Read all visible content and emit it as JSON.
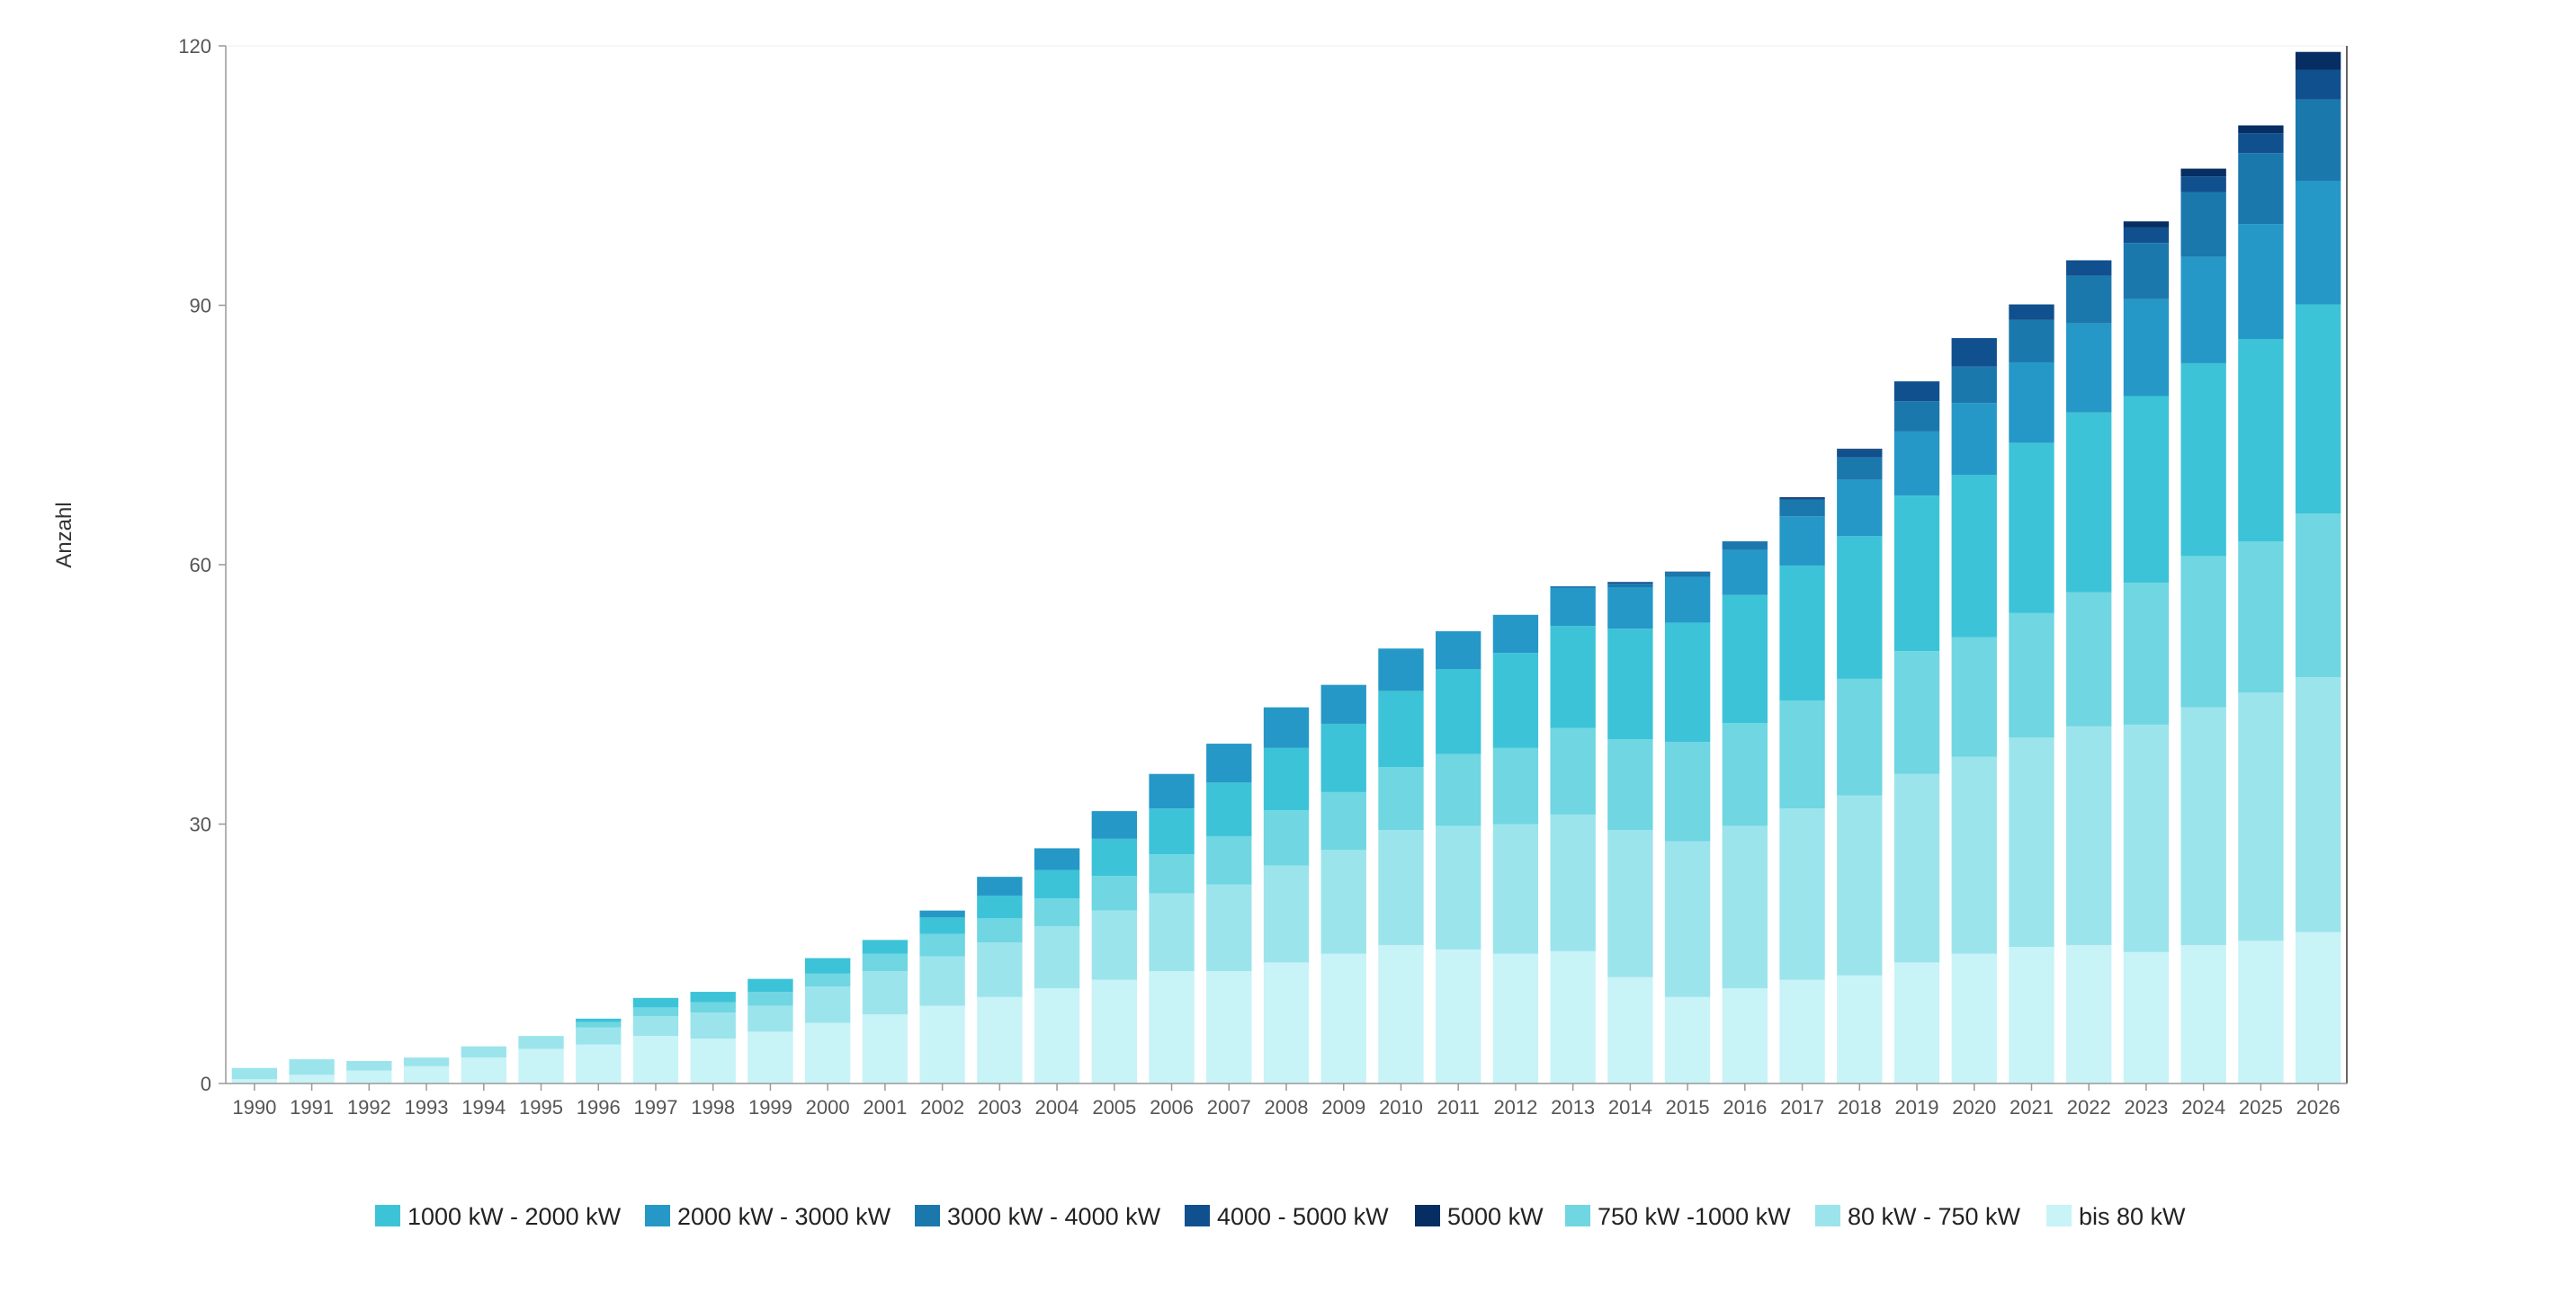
{
  "chart_data": {
    "type": "bar",
    "stacked": true,
    "ylabel": "Anzahl",
    "xlabel": "",
    "ylim": [
      0,
      120
    ],
    "yticks": [
      "0",
      "30",
      "60",
      "90",
      "120"
    ],
    "legend_position": "bottom",
    "categories": [
      "1990",
      "1991",
      "1992",
      "1993",
      "1994",
      "1995",
      "1996",
      "1997",
      "1998",
      "1999",
      "2000",
      "2001",
      "2002",
      "2003",
      "2004",
      "2005",
      "2006",
      "2007",
      "2008",
      "2009",
      "2010",
      "2011",
      "2012",
      "2013",
      "2014",
      "2015",
      "2016",
      "2017",
      "2018",
      "2019",
      "2020",
      "2021",
      "2022",
      "2023",
      "2024",
      "2025",
      "2026"
    ],
    "series": [
      {
        "name": "bis 80 kW",
        "color": "#c8f3f7",
        "values": [
          0.5,
          1,
          1.5,
          2,
          3,
          4,
          4.5,
          5.5,
          5.2,
          6,
          7,
          8,
          9,
          10,
          11,
          12,
          13,
          13,
          14,
          15,
          16,
          15.5,
          15,
          15.3,
          12.3,
          10,
          11,
          12,
          12.5,
          14,
          15,
          15.8,
          16,
          15.2,
          16,
          16.5,
          17.5
        ]
      },
      {
        "name": "80 kW - 750 kW",
        "color": "#9ce4ec",
        "values": [
          1.3,
          1.8,
          1.1,
          1,
          1.3,
          1.5,
          2,
          2.3,
          3,
          3,
          4.2,
          5,
          5.7,
          6.3,
          7.2,
          8,
          9,
          10,
          11.2,
          12,
          13.3,
          14.3,
          15,
          15.8,
          17,
          18,
          18.8,
          19.8,
          20.8,
          21.8,
          22.8,
          24.2,
          25.3,
          26.3,
          27.5,
          28.7,
          29.5
        ]
      },
      {
        "name": "750 kW -1000 kW",
        "color": "#6fd6e2",
        "values": [
          0,
          0,
          0,
          0,
          0,
          0,
          0.6,
          1,
          1.2,
          1.6,
          1.5,
          2,
          2.6,
          2.8,
          3.2,
          4,
          4.5,
          5.6,
          6.4,
          6.7,
          7.3,
          8.3,
          8.8,
          10,
          10.5,
          11.5,
          11.9,
          12.5,
          13.5,
          14.2,
          13.8,
          14.4,
          15.5,
          16.4,
          17.5,
          17.5,
          18.9
        ]
      },
      {
        "name": "1000 kW - 2000 kW",
        "color": "#3cc3d8",
        "values": [
          0,
          0,
          0,
          0,
          0,
          0,
          0.4,
          1.1,
          1.2,
          1.5,
          1.8,
          1.6,
          1.9,
          2.6,
          3.3,
          4.3,
          5.3,
          6.2,
          7.2,
          7.9,
          8.8,
          9.8,
          11,
          11.8,
          12.8,
          13.8,
          14.8,
          15.6,
          16.5,
          18,
          18.8,
          19.7,
          20.8,
          21.6,
          22.3,
          23.4,
          24.2
        ]
      },
      {
        "name": "2000 kW - 3000 kW",
        "color": "#2598c7",
        "values": [
          0,
          0,
          0,
          0,
          0,
          0,
          0,
          0,
          0,
          0,
          0,
          0,
          0.8,
          2.2,
          2.5,
          3.2,
          4,
          4.5,
          4.7,
          4.5,
          4.9,
          4.4,
          4.4,
          4.4,
          4.8,
          5.3,
          5.2,
          5.7,
          6.5,
          7.4,
          8.3,
          9.3,
          10.3,
          11.2,
          12.3,
          13.3,
          14.3
        ]
      },
      {
        "name": "3000 kW - 4000 kW",
        "color": "#1b78ad",
        "values": [
          0,
          0,
          0,
          0,
          0,
          0,
          0,
          0,
          0,
          0,
          0,
          0,
          0,
          0,
          0,
          0,
          0,
          0,
          0,
          0,
          0,
          0,
          0,
          0.2,
          0.4,
          0.5,
          1,
          1.9,
          2.6,
          3.5,
          4.2,
          4.9,
          5.5,
          6.5,
          7.5,
          8.2,
          9.4
        ]
      },
      {
        "name": "4000 - 5000 kW",
        "color": "#10508e",
        "values": [
          0,
          0,
          0,
          0,
          0,
          0,
          0,
          0,
          0,
          0,
          0,
          0,
          0,
          0,
          0,
          0,
          0,
          0,
          0,
          0,
          0,
          0,
          0,
          0,
          0.2,
          0.1,
          0,
          0.2,
          0.9,
          2.3,
          3.3,
          1.8,
          1.8,
          1.8,
          1.8,
          2.3,
          3.4
        ]
      },
      {
        "name": "5000 kW",
        "color": "#062e63",
        "values": [
          0,
          0,
          0,
          0,
          0,
          0,
          0,
          0,
          0,
          0,
          0,
          0,
          0,
          0,
          0,
          0,
          0,
          0,
          0,
          0,
          0,
          0,
          0,
          0,
          0,
          0,
          0,
          0.1,
          0.1,
          0,
          0,
          0,
          0,
          0.7,
          0.9,
          0.9,
          2.1
        ]
      }
    ],
    "legend_order": [
      "1000 kW - 2000 kW",
      "2000 kW - 3000 kW",
      "3000 kW - 4000 kW",
      "4000 - 5000 kW",
      "5000 kW",
      "750 kW -1000 kW",
      "80 kW - 750 kW",
      "bis 80 kW"
    ]
  }
}
